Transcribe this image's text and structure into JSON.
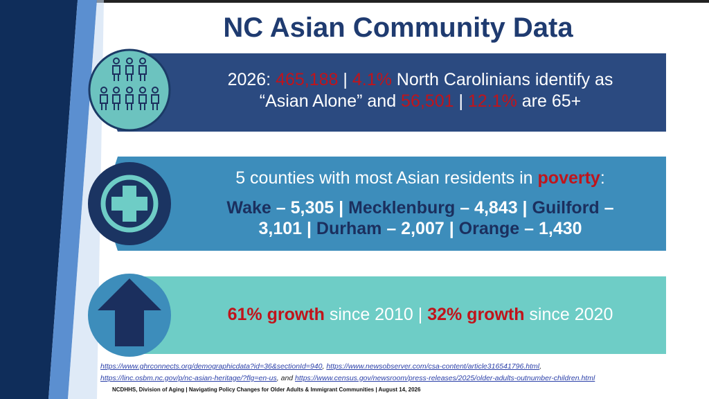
{
  "title": "NC Asian Community Data",
  "sections": [
    {
      "lines": [
        [
          "2026: ",
          "465,188",
          " | ",
          "4.1%",
          " North Carolinians identify as"
        ],
        [
          "“Asian Alone” and ",
          "56,501",
          " | ",
          "12.1%",
          " are 65+"
        ]
      ]
    },
    {
      "lines": [
        [
          "5 counties with most Asian residents in ",
          "poverty",
          ":"
        ],
        [
          "Wake",
          " – 5,305 | ",
          "Mecklenburg",
          " – 4,843 | ",
          "Guilford",
          " –"
        ],
        [
          "3,101 | ",
          "Durham",
          " – 2,007 | ",
          "Orange",
          " – 1,430"
        ]
      ]
    },
    {
      "lines": [
        [
          "61% growth",
          " since 2010 | ",
          "32% growth",
          " since 2020"
        ]
      ]
    }
  ],
  "sources": {
    "lines": [
      [
        "https://www.ghrconnects.org/demographicdata?id=36&sectionId=940",
        ", ",
        "https://www.newsobserver.com/csa-content/article316541796.html",
        ","
      ],
      [
        "https://linc.osbm.nc.gov/p/nc-asian-heritage/?flg=en-us",
        ", and ",
        "https://www.census.gov/newsroom/press-releases/2025/older-adults-outnumber-children.html"
      ]
    ]
  },
  "footer": "NCDHHS, Division of Aging | Navigating Policy Changes for Older Adults & Immigrant Communities | August 14, 2026"
}
